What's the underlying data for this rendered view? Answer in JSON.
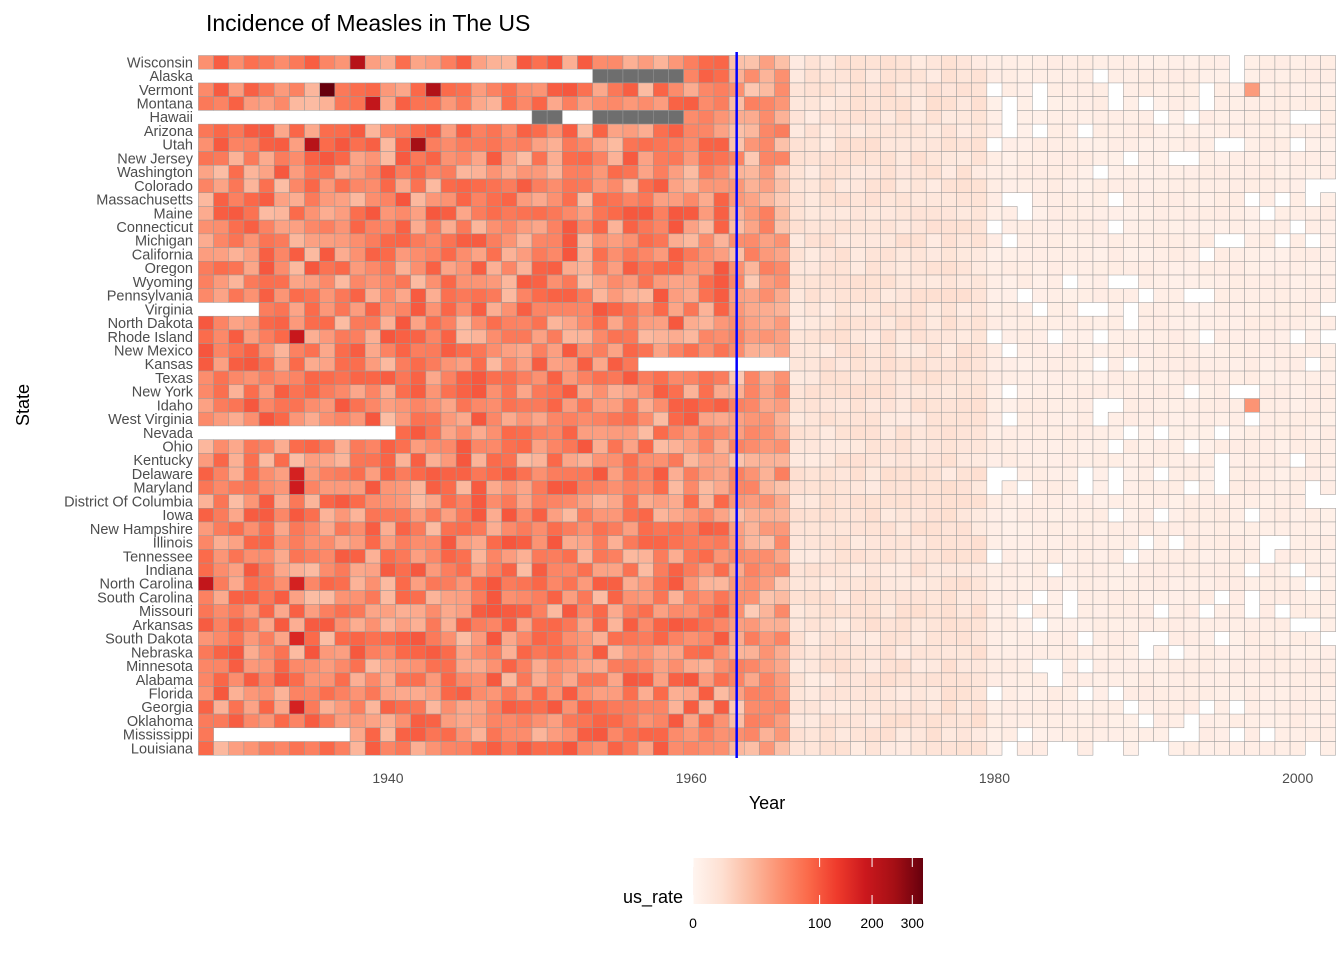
{
  "chart_data": {
    "type": "heatmap",
    "title": "Incidence of Measles in The US",
    "xlabel": "Year",
    "ylabel": "State",
    "xlim": [
      1928,
      2002
    ],
    "x_ticks": [
      "1940",
      "1960",
      "1980",
      "2000"
    ],
    "y_categories": [
      "Wisconsin",
      "Alaska",
      "Vermont",
      "Montana",
      "Hawaii",
      "Arizona",
      "Utah",
      "New Jersey",
      "Washington",
      "Colorado",
      "Massachusetts",
      "Maine",
      "Connecticut",
      "Michigan",
      "California",
      "Oregon",
      "Wyoming",
      "Pennsylvania",
      "Virginia",
      "North Dakota",
      "Rhode Island",
      "New Mexico",
      "Kansas",
      "Texas",
      "New York",
      "Idaho",
      "West Virginia",
      "Nevada",
      "Ohio",
      "Kentucky",
      "Delaware",
      "Maryland",
      "District Of Columbia",
      "Iowa",
      "New Hampshire",
      "Illinois",
      "Tennessee",
      "Indiana",
      "North Carolina",
      "South Carolina",
      "Missouri",
      "Arkansas",
      "South Dakota",
      "Nebraska",
      "Minnesota",
      "Alabama",
      "Florida",
      "Georgia",
      "Oklahoma",
      "Mississippi",
      "Louisiana"
    ],
    "vaccine_year": 1963,
    "vaccine_line_color": "#0000ff",
    "missing_color": "#6e6e6e",
    "cell_border_color": "#999999",
    "legend": {
      "title": "us_rate",
      "ticks": [
        "0",
        "100",
        "200",
        "300"
      ],
      "tick_values": [
        0,
        100,
        200,
        300
      ],
      "transform": "sqrt",
      "range": [
        0,
        330
      ],
      "colors": [
        "#fff5f0",
        "#fee0d2",
        "#fcbba1",
        "#fc9272",
        "#fb6a4a",
        "#ef3b2c",
        "#cb181d",
        "#a50f15",
        "#67000d"
      ],
      "position": "bottom"
    },
    "value_profile": {
      "eras": [
        {
          "years": [
            1928,
            1962
          ],
          "typical_rate": 55
        },
        {
          "years": [
            1963,
            1966
          ],
          "typical_rate": 35
        },
        {
          "years": [
            1967,
            1979
          ],
          "typical_rate": 3
        },
        {
          "years": [
            1980,
            2002
          ],
          "typical_rate": 0.5
        }
      ],
      "peaks": [
        {
          "state": "Vermont",
          "year": 1936,
          "value": 330
        },
        {
          "state": "Utah",
          "year": 1942,
          "value": 250
        },
        {
          "state": "Vermont",
          "year": 1943,
          "value": 230
        },
        {
          "state": "Wisconsin",
          "year": 1938,
          "value": 220
        },
        {
          "state": "Utah",
          "year": 1935,
          "value": 220
        },
        {
          "state": "North Carolina",
          "year": 1928,
          "value": 200
        },
        {
          "state": "Montana",
          "year": 1939,
          "value": 200
        },
        {
          "state": "Rhode Island",
          "year": 1934,
          "value": 190
        },
        {
          "state": "Delaware",
          "year": 1934,
          "value": 170
        },
        {
          "state": "Maryland",
          "year": 1934,
          "value": 180
        },
        {
          "state": "Georgia",
          "year": 1934,
          "value": 170
        },
        {
          "state": "North Carolina",
          "year": 1934,
          "value": 170
        },
        {
          "state": "South Dakota",
          "year": 1934,
          "value": 160
        },
        {
          "state": "Idaho",
          "year": 1997,
          "value": 45
        },
        {
          "state": "Vermont",
          "year": 1997,
          "value": 40
        }
      ],
      "missing_cells": [
        {
          "state": "Alaska",
          "years": [
            1954,
            1959
          ]
        },
        {
          "state": "Hawaii",
          "years": [
            1950,
            1951
          ]
        },
        {
          "state": "Hawaii",
          "years": [
            1954,
            1959
          ]
        }
      ],
      "absent_ranges": [
        {
          "state": "Alaska",
          "years": [
            1928,
            1953
          ]
        },
        {
          "state": "Hawaii",
          "years": [
            1928,
            1949
          ]
        },
        {
          "state": "Hawaii",
          "years": [
            1952,
            1953
          ]
        },
        {
          "state": "Virginia",
          "years": [
            1928,
            1931
          ]
        },
        {
          "state": "Nevada",
          "years": [
            1928,
            1940
          ]
        },
        {
          "state": "Kansas",
          "years": [
            1957,
            1966
          ]
        },
        {
          "state": "Mississippi",
          "years": [
            1929,
            1937
          ]
        }
      ]
    }
  }
}
